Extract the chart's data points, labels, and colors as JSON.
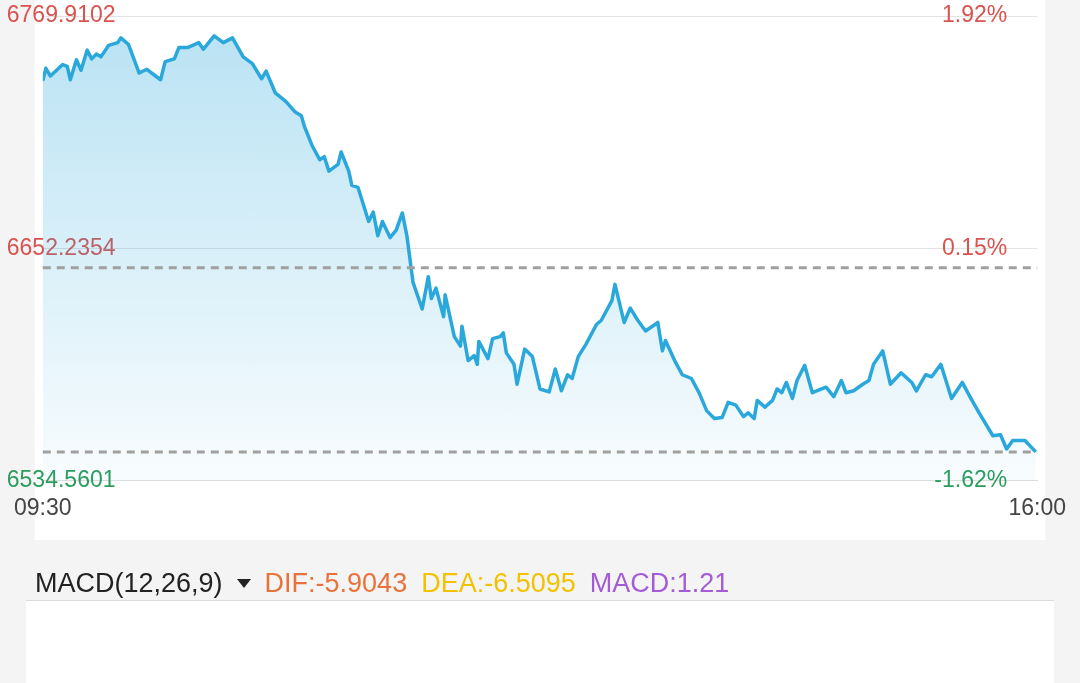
{
  "chart_data": [
    {
      "type": "area",
      "x": [
        9.5,
        9.52,
        9.55,
        9.63,
        9.66,
        9.68,
        9.72,
        9.75,
        9.79,
        9.82,
        9.85,
        9.88,
        9.93,
        9.99,
        10.01,
        10.06,
        10.13,
        10.18,
        10.27,
        10.3,
        10.36,
        10.39,
        10.45,
        10.52,
        10.55,
        10.62,
        10.68,
        10.74,
        10.81,
        10.87,
        10.93,
        10.96,
        11.02,
        11.09,
        11.15,
        11.19,
        11.21,
        11.26,
        11.31,
        11.34,
        11.37,
        11.43,
        11.45,
        11.5,
        11.52,
        11.56,
        11.63,
        11.66,
        11.69,
        11.72,
        11.77,
        11.81,
        11.85,
        11.88,
        11.92,
        11.98,
        12.02,
        12.04,
        12.07,
        12.12,
        12.13,
        12.19,
        12.23,
        12.24,
        12.28,
        12.32,
        12.34,
        12.35,
        12.41,
        12.44,
        12.49,
        12.51,
        12.53,
        12.58,
        12.6,
        12.65,
        12.7,
        12.75,
        12.81,
        12.85,
        12.89,
        12.93,
        12.96,
        13.0,
        13.05,
        13.12,
        13.15,
        13.22,
        13.24,
        13.3,
        13.34,
        13.39,
        13.44,
        13.52,
        13.55,
        13.57,
        13.63,
        13.68,
        13.74,
        13.79,
        13.84,
        13.89,
        13.94,
        13.98,
        14.03,
        14.08,
        14.11,
        14.15,
        14.17,
        14.22,
        14.27,
        14.3,
        14.33,
        14.36,
        14.4,
        14.43,
        14.48,
        14.53,
        14.62,
        14.67,
        14.72,
        14.75,
        14.8,
        14.86,
        14.9,
        14.93,
        14.99,
        15.04,
        15.11,
        15.18,
        15.21,
        15.27,
        15.31,
        15.37,
        15.44,
        15.51,
        15.56,
        15.62,
        15.71,
        15.76,
        15.8,
        15.84,
        15.92,
        15.99
      ],
      "series": [
        {
          "color": "#2aa8dc",
          "values": [
            6737.1,
            6743.4,
            6739.5,
            6745.3,
            6744.4,
            6737.6,
            6747.7,
            6742.4,
            6752.6,
            6748.2,
            6750.6,
            6749.2,
            6755.0,
            6756.4,
            6758.8,
            6755.5,
            6741.0,
            6742.9,
            6737.6,
            6746.8,
            6748.2,
            6754.0,
            6754.0,
            6756.4,
            6753.1,
            6759.8,
            6756.4,
            6758.8,
            6749.2,
            6745.8,
            6738.1,
            6742.0,
            6730.9,
            6726.5,
            6721.2,
            6719.3,
            6714.0,
            6704.3,
            6697.1,
            6698.6,
            6691.3,
            6694.7,
            6701.0,
            6691.3,
            6684.1,
            6683.1,
            6665.8,
            6670.6,
            6658.5,
            6665.8,
            6657.6,
            6661.4,
            6670.1,
            6658.5,
            6634.9,
            6621.4,
            6637.8,
            6626.7,
            6632.0,
            6617.5,
            6628.6,
            6607.4,
            6602.6,
            6612.7,
            6595.3,
            6597.8,
            6593.4,
            6605.0,
            6596.3,
            6606.4,
            6607.4,
            6609.3,
            6599.2,
            6593.4,
            6583.3,
            6601.1,
            6597.3,
            6580.9,
            6579.4,
            6591.0,
            6580.0,
            6588.1,
            6586.2,
            6597.3,
            6603.5,
            6613.7,
            6615.6,
            6625.7,
            6633.9,
            6614.6,
            6621.9,
            6615.6,
            6610.3,
            6614.6,
            6600.2,
            6605.5,
            6595.3,
            6588.1,
            6586.2,
            6578.9,
            6569.8,
            6565.9,
            6566.4,
            6574.1,
            6572.7,
            6566.9,
            6568.8,
            6565.9,
            6575.1,
            6571.7,
            6575.1,
            6580.9,
            6579.0,
            6584.2,
            6576.1,
            6585.2,
            6592.9,
            6579.0,
            6581.8,
            6577.0,
            6585.2,
            6579.0,
            6580.0,
            6583.3,
            6585.2,
            6593.4,
            6600.2,
            6583.3,
            6589.1,
            6584.2,
            6579.9,
            6588.1,
            6587.1,
            6593.4,
            6576.1,
            6584.2,
            6577.0,
            6568.8,
            6557.2,
            6557.7,
            6550.5,
            6554.8,
            6554.8,
            6549.0
          ]
        }
      ],
      "xlim": [
        9.5,
        16
      ],
      "xticks": [
        {
          "value": 9.5,
          "label": "09:30"
        },
        {
          "value": 16,
          "label": "16:00"
        }
      ],
      "ylim": [
        6534.5601,
        6769.9102
      ],
      "yticks": [
        6534.5601,
        6652.2354,
        6769.9102
      ],
      "y2lim": [
        -1.62,
        1.92
      ],
      "y2ticks": [
        {
          "value": -1.62,
          "label": "-1.62%"
        },
        {
          "value": 0.15,
          "label": "0.15%"
        },
        {
          "value": 1.92,
          "label": "1.92%"
        }
      ],
      "ref_lines": [
        {
          "axis": "y",
          "value": 6642.27,
          "color": "#a0a0a0",
          "line_style": "dashed"
        },
        {
          "axis": "y",
          "value": 6549.0,
          "color": "#a0a0a0",
          "line_style": "dashed"
        }
      ],
      "grid": "y",
      "legend": false,
      "marker": "none"
    },
    {
      "type": "other",
      "title": "MACD(12,26,9)",
      "annotations": [
        "DIF:-5.9043",
        "DEA:-6.5095",
        "MACD:1.21"
      ]
    }
  ]
}
